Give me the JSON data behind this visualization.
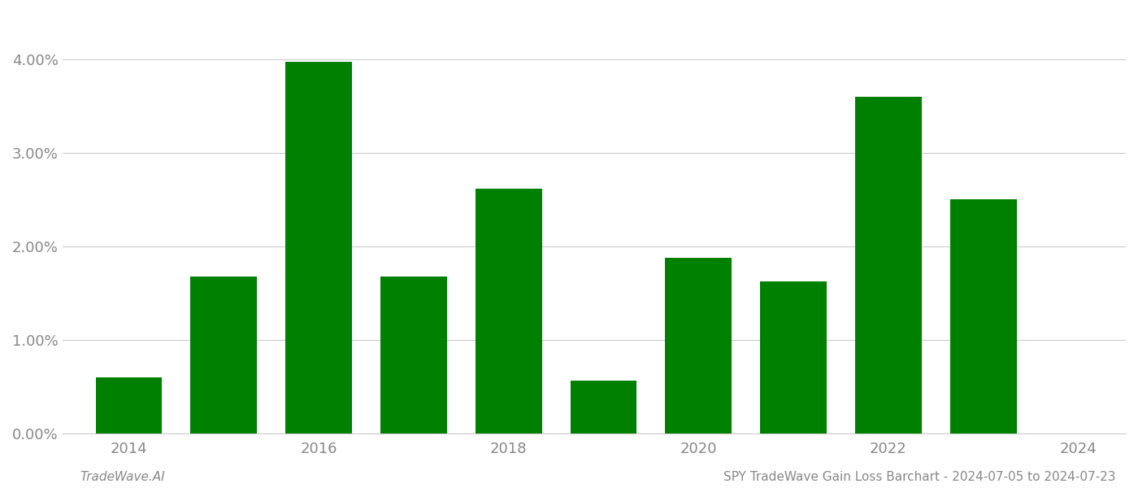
{
  "years": [
    2014,
    2015,
    2016,
    2017,
    2018,
    2019,
    2020,
    2021,
    2022,
    2023
  ],
  "values": [
    0.006,
    0.0168,
    0.0397,
    0.0168,
    0.0262,
    0.0057,
    0.0188,
    0.0163,
    0.036,
    0.025
  ],
  "bar_color": "#008000",
  "background_color": "#ffffff",
  "grid_color": "#cccccc",
  "tick_label_color": "#888888",
  "footer_left": "TradeWave.AI",
  "footer_right": "SPY TradeWave Gain Loss Barchart - 2024-07-05 to 2024-07-23",
  "ylim": [
    0,
    0.045
  ],
  "yticks": [
    0.0,
    0.01,
    0.02,
    0.03,
    0.04
  ],
  "xticks": [
    2014,
    2016,
    2018,
    2020,
    2022,
    2024
  ],
  "bar_width": 0.7,
  "xlim": [
    2013.3,
    2024.5
  ],
  "figsize": [
    14.0,
    6.0
  ],
  "dpi": 100
}
